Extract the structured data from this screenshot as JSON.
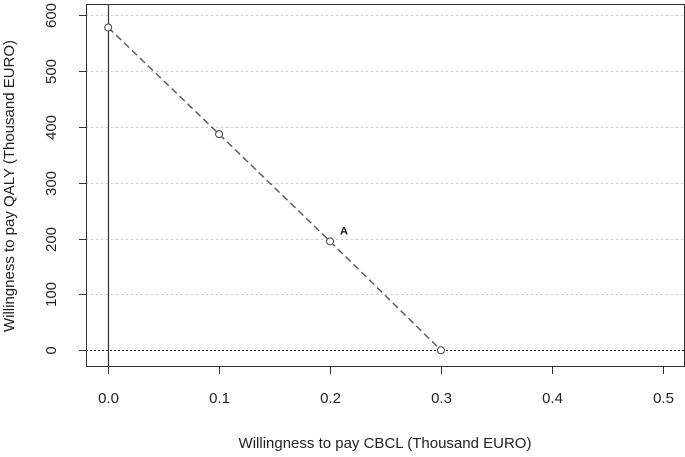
{
  "chart_data": {
    "type": "line",
    "title": "",
    "xlabel": "Willingness to pay CBCL (Thousand EURO)",
    "ylabel": "Willingness to pay QALY (Thousand EURO)",
    "xlim": [
      -0.02,
      0.52
    ],
    "ylim": [
      -30,
      620
    ],
    "x_ticks": [
      0.0,
      0.1,
      0.2,
      0.3,
      0.4,
      0.5
    ],
    "x_tick_labels": [
      "0.0",
      "0.1",
      "0.2",
      "0.3",
      "0.4",
      "0.5"
    ],
    "y_ticks": [
      0,
      100,
      200,
      300,
      400,
      500,
      600
    ],
    "y_tick_labels": [
      "0",
      "100",
      "200",
      "300",
      "400",
      "500",
      "600"
    ],
    "grid": {
      "horizontal": true,
      "vertical": false,
      "style": "dotted"
    },
    "reference_lines": {
      "vertical_x": 0,
      "horizontal_y": 0
    },
    "series": [
      {
        "x": [
          0.0,
          0.1,
          0.2,
          0.3
        ],
        "y": [
          578,
          387,
          195,
          0
        ],
        "line_style": "dashed",
        "marker": "open-circle"
      }
    ],
    "annotations": [
      {
        "text": "A",
        "x": 0.2,
        "y": 195
      }
    ]
  }
}
